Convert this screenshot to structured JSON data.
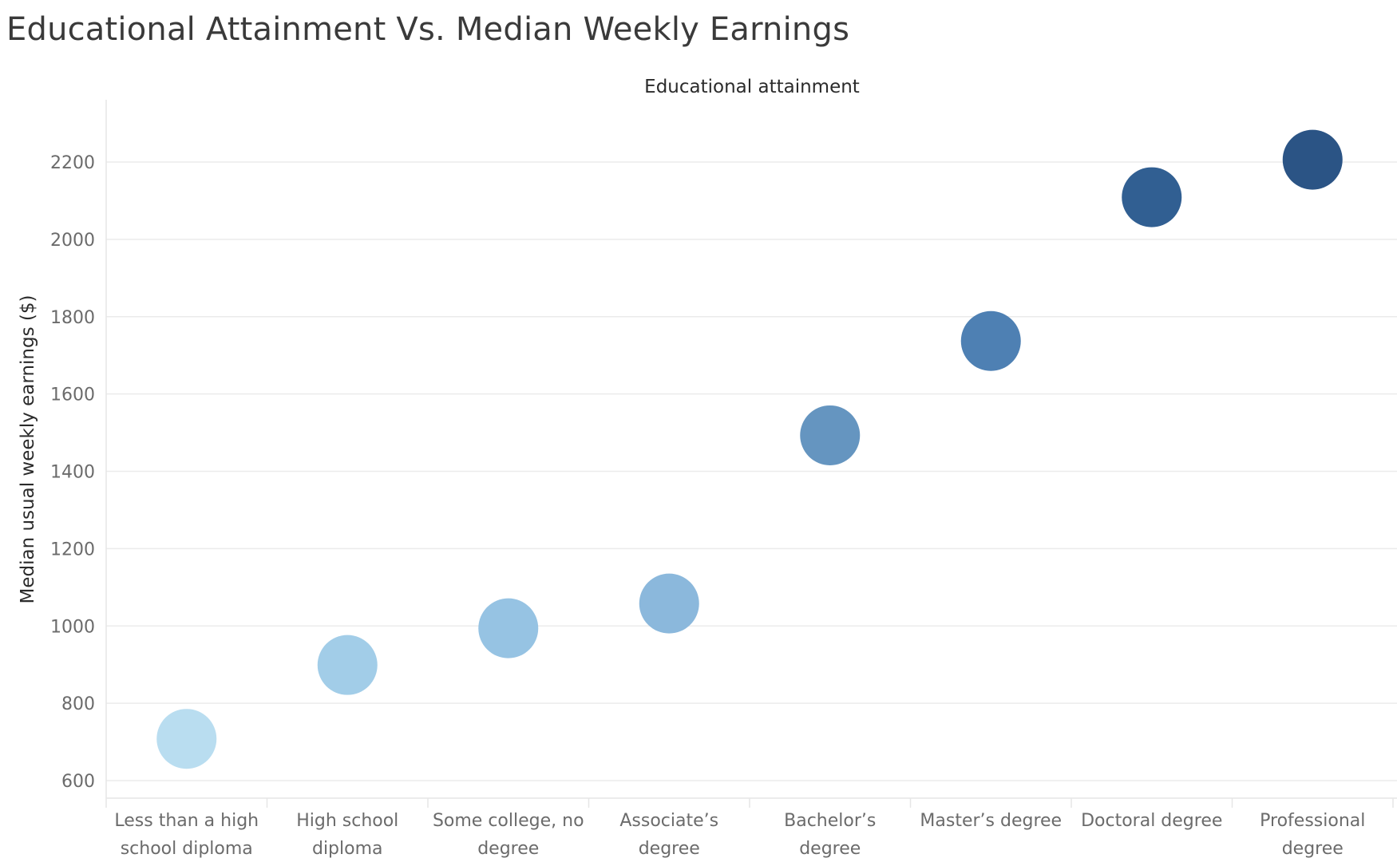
{
  "chart_data": {
    "type": "scatter",
    "title": "Educational Attainment Vs. Median Weekly Earnings",
    "xlabel": "Educational attainment",
    "ylabel": "Median usual weekly earnings ($)",
    "categories": [
      "Less than a high school diploma",
      "High school diploma",
      "Some college, no degree",
      "Associate’s degree",
      "Bachelor’s degree",
      "Master’s degree",
      "Doctoral degree",
      "Professional degree"
    ],
    "category_label_lines": [
      [
        "Less than a high",
        "school diploma"
      ],
      [
        "High school",
        "diploma"
      ],
      [
        "Some college, no",
        "degree"
      ],
      [
        "Associate’s",
        "degree"
      ],
      [
        "Bachelor’s",
        "degree"
      ],
      [
        "Master’s degree"
      ],
      [
        "Doctoral degree"
      ],
      [
        "Professional",
        "degree"
      ]
    ],
    "values": [
      708,
      899,
      994,
      1058,
      1493,
      1737,
      2109,
      2206
    ],
    "colors": [
      "#b9ddf0",
      "#a2cde8",
      "#96c3e3",
      "#8bb8dc",
      "#6595c0",
      "#4e80b3",
      "#315f92",
      "#2b5485"
    ],
    "yticks": [
      600,
      800,
      1000,
      1200,
      1400,
      1600,
      1800,
      2000,
      2200
    ],
    "ylim": [
      560,
      2360
    ],
    "grid": true,
    "legend": "none"
  }
}
